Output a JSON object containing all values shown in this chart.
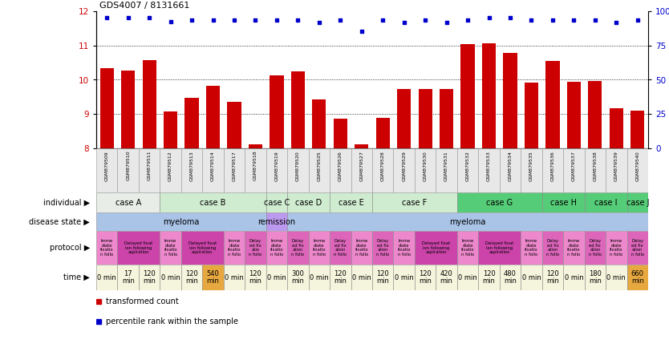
{
  "title": "GDS4007 / 8131661",
  "samples": [
    "GSM879509",
    "GSM879510",
    "GSM879511",
    "GSM879512",
    "GSM879513",
    "GSM879514",
    "GSM879517",
    "GSM879518",
    "GSM879519",
    "GSM879520",
    "GSM879525",
    "GSM879526",
    "GSM879527",
    "GSM879528",
    "GSM879529",
    "GSM879530",
    "GSM879531",
    "GSM879532",
    "GSM879533",
    "GSM879534",
    "GSM879535",
    "GSM879536",
    "GSM879537",
    "GSM879538",
    "GSM879539",
    "GSM879540"
  ],
  "bar_values": [
    10.35,
    10.28,
    10.57,
    9.07,
    9.47,
    9.82,
    9.35,
    8.12,
    10.12,
    10.25,
    9.42,
    8.87,
    8.12,
    8.9,
    9.73,
    9.72,
    9.72,
    11.05,
    11.07,
    10.78,
    9.92,
    10.55,
    9.93,
    9.97,
    9.18,
    9.11
  ],
  "dot_values": [
    11.82,
    11.82,
    11.82,
    11.7,
    11.75,
    11.75,
    11.75,
    11.75,
    11.75,
    11.75,
    11.68,
    11.75,
    11.42,
    11.75,
    11.68,
    11.75,
    11.68,
    11.75,
    11.82,
    11.82,
    11.75,
    11.75,
    11.75,
    11.75,
    11.68,
    11.75
  ],
  "ylim": [
    8,
    12
  ],
  "yticks": [
    8,
    9,
    10,
    11,
    12
  ],
  "ytick_labels_left": [
    "8",
    "9",
    "10",
    "11",
    "12"
  ],
  "right_ytick_labels": [
    "0",
    "25",
    "50",
    "75",
    "100%"
  ],
  "bar_color": "#cc0000",
  "dot_color": "#0000cc",
  "individual_groups": [
    {
      "name": "case A",
      "start": 0,
      "end": 3,
      "color": "#e8ede8"
    },
    {
      "name": "case B",
      "start": 3,
      "end": 8,
      "color": "#d0ecd0"
    },
    {
      "name": "case C",
      "start": 8,
      "end": 9,
      "color": "#d0ecd0"
    },
    {
      "name": "case D",
      "start": 9,
      "end": 11,
      "color": "#d0ecd0"
    },
    {
      "name": "case E",
      "start": 11,
      "end": 13,
      "color": "#d0ecd0"
    },
    {
      "name": "case F",
      "start": 13,
      "end": 17,
      "color": "#d0ecd0"
    },
    {
      "name": "case G",
      "start": 17,
      "end": 21,
      "color": "#55cc77"
    },
    {
      "name": "case H",
      "start": 21,
      "end": 23,
      "color": "#55cc77"
    },
    {
      "name": "case I",
      "start": 23,
      "end": 25,
      "color": "#55cc77"
    },
    {
      "name": "case J",
      "start": 25,
      "end": 26,
      "color": "#55cc77"
    }
  ],
  "disease_groups": [
    {
      "name": "myeloma",
      "start": 0,
      "end": 8,
      "color": "#aac4e8"
    },
    {
      "name": "remission",
      "start": 8,
      "end": 9,
      "color": "#bb99ee"
    },
    {
      "name": "myeloma",
      "start": 9,
      "end": 26,
      "color": "#aac4e8"
    }
  ],
  "protocol_groups": [
    {
      "name": "Imme\ndiate\nfixatio\nn follo",
      "start": 0,
      "end": 1,
      "color": "#ee88cc"
    },
    {
      "name": "Delayed fixat\nion following\naspiration",
      "start": 1,
      "end": 3,
      "color": "#cc44aa"
    },
    {
      "name": "Imme\ndiate\nfixatio\nn follo",
      "start": 3,
      "end": 4,
      "color": "#ee88cc"
    },
    {
      "name": "Delayed fixat\nion following\naspiration",
      "start": 4,
      "end": 6,
      "color": "#cc44aa"
    },
    {
      "name": "Imme\ndiate\nfixatio\nn follo",
      "start": 6,
      "end": 7,
      "color": "#ee88cc"
    },
    {
      "name": "Delay\ned fix\natio\nn follo",
      "start": 7,
      "end": 8,
      "color": "#dd66bb"
    },
    {
      "name": "Imme\ndiate\nfixatio\nn follo",
      "start": 8,
      "end": 9,
      "color": "#ee88cc"
    },
    {
      "name": "Delay\ned fix\nation\nn follo",
      "start": 9,
      "end": 10,
      "color": "#dd66bb"
    },
    {
      "name": "Imme\ndiate\nfixatio\nn follo",
      "start": 10,
      "end": 11,
      "color": "#ee88cc"
    },
    {
      "name": "Delay\ned fix\nation\nn follo",
      "start": 11,
      "end": 12,
      "color": "#dd66bb"
    },
    {
      "name": "Imme\ndiate\nfixatio\nn follo",
      "start": 12,
      "end": 13,
      "color": "#ee88cc"
    },
    {
      "name": "Delay\ned fix\nation\nn follo",
      "start": 13,
      "end": 14,
      "color": "#dd66bb"
    },
    {
      "name": "Imme\ndiate\nfixatio\nn follo",
      "start": 14,
      "end": 15,
      "color": "#ee88cc"
    },
    {
      "name": "Delayed fixat\nion following\naspiration",
      "start": 15,
      "end": 17,
      "color": "#cc44aa"
    },
    {
      "name": "Imme\ndiate\nfixatio\nn follo",
      "start": 17,
      "end": 18,
      "color": "#ee88cc"
    },
    {
      "name": "Delayed fixat\nion following\naspiration",
      "start": 18,
      "end": 20,
      "color": "#cc44aa"
    },
    {
      "name": "Imme\ndiate\nfixatio\nn follo",
      "start": 20,
      "end": 21,
      "color": "#ee88cc"
    },
    {
      "name": "Delay\ned fix\nation\nn follo",
      "start": 21,
      "end": 22,
      "color": "#dd66bb"
    },
    {
      "name": "Imme\ndiate\nfixatio\nn follo",
      "start": 22,
      "end": 23,
      "color": "#ee88cc"
    },
    {
      "name": "Delay\ned fix\nation\nn follo",
      "start": 23,
      "end": 24,
      "color": "#dd66bb"
    },
    {
      "name": "Imme\ndiate\nfixatio\nn follo",
      "start": 24,
      "end": 25,
      "color": "#ee88cc"
    },
    {
      "name": "Delay\ned fix\nation\nn follo",
      "start": 25,
      "end": 26,
      "color": "#dd66bb"
    }
  ],
  "time_groups": [
    {
      "name": "0 min",
      "start": 0,
      "end": 1,
      "color": "#f5f5dd"
    },
    {
      "name": "17\nmin",
      "start": 1,
      "end": 2,
      "color": "#f5f5dd"
    },
    {
      "name": "120\nmin",
      "start": 2,
      "end": 3,
      "color": "#f5f5dd"
    },
    {
      "name": "0 min",
      "start": 3,
      "end": 4,
      "color": "#f5f5dd"
    },
    {
      "name": "120\nmin",
      "start": 4,
      "end": 5,
      "color": "#f5f5dd"
    },
    {
      "name": "540\nmin",
      "start": 5,
      "end": 6,
      "color": "#e8a840"
    },
    {
      "name": "0 min",
      "start": 6,
      "end": 7,
      "color": "#f5f5dd"
    },
    {
      "name": "120\nmin",
      "start": 7,
      "end": 8,
      "color": "#f5f5dd"
    },
    {
      "name": "0 min",
      "start": 8,
      "end": 9,
      "color": "#f5f5dd"
    },
    {
      "name": "300\nmin",
      "start": 9,
      "end": 10,
      "color": "#f5f5dd"
    },
    {
      "name": "0 min",
      "start": 10,
      "end": 11,
      "color": "#f5f5dd"
    },
    {
      "name": "120\nmin",
      "start": 11,
      "end": 12,
      "color": "#f5f5dd"
    },
    {
      "name": "0 min",
      "start": 12,
      "end": 13,
      "color": "#f5f5dd"
    },
    {
      "name": "120\nmin",
      "start": 13,
      "end": 14,
      "color": "#f5f5dd"
    },
    {
      "name": "0 min",
      "start": 14,
      "end": 15,
      "color": "#f5f5dd"
    },
    {
      "name": "120\nmin",
      "start": 15,
      "end": 16,
      "color": "#f5f5dd"
    },
    {
      "name": "420\nmin",
      "start": 16,
      "end": 17,
      "color": "#f5f5dd"
    },
    {
      "name": "0 min",
      "start": 17,
      "end": 18,
      "color": "#f5f5dd"
    },
    {
      "name": "120\nmin",
      "start": 18,
      "end": 19,
      "color": "#f5f5dd"
    },
    {
      "name": "480\nmin",
      "start": 19,
      "end": 20,
      "color": "#f5f5dd"
    },
    {
      "name": "0 min",
      "start": 20,
      "end": 21,
      "color": "#f5f5dd"
    },
    {
      "name": "120\nmin",
      "start": 21,
      "end": 22,
      "color": "#f5f5dd"
    },
    {
      "name": "0 min",
      "start": 22,
      "end": 23,
      "color": "#f5f5dd"
    },
    {
      "name": "180\nmin",
      "start": 23,
      "end": 24,
      "color": "#f5f5dd"
    },
    {
      "name": "0 min",
      "start": 24,
      "end": 25,
      "color": "#f5f5dd"
    },
    {
      "name": "660\nmin",
      "start": 25,
      "end": 26,
      "color": "#e8a840"
    }
  ],
  "row_labels": [
    "individual",
    "disease state",
    "protocol",
    "time"
  ],
  "legend_items": [
    {
      "label": "transformed count",
      "color": "#cc0000"
    },
    {
      "label": "percentile rank within the sample",
      "color": "#0000cc"
    }
  ]
}
